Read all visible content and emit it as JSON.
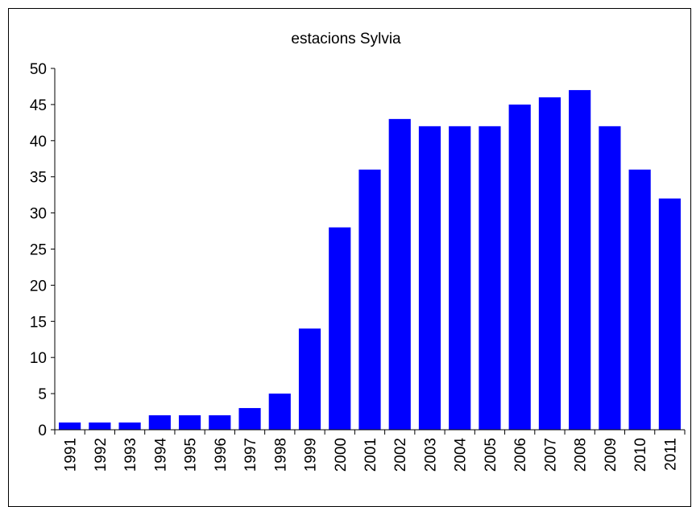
{
  "chart_data": {
    "type": "bar",
    "title": "estacions Sylvia",
    "xlabel": "",
    "ylabel": "",
    "categories": [
      "1991",
      "1992",
      "1993",
      "1994",
      "1995",
      "1996",
      "1997",
      "1998",
      "1999",
      "2000",
      "2001",
      "2002",
      "2003",
      "2004",
      "2005",
      "2006",
      "2007",
      "2008",
      "2009",
      "2010",
      "2011"
    ],
    "values": [
      1,
      1,
      1,
      2,
      2,
      2,
      3,
      5,
      14,
      28,
      36,
      43,
      42,
      42,
      42,
      45,
      46,
      47,
      42,
      36,
      32
    ],
    "ylim": [
      0,
      50
    ],
    "yticks": [
      0,
      5,
      10,
      15,
      20,
      25,
      30,
      35,
      40,
      45,
      50
    ],
    "grid": false,
    "legend": "none",
    "bar_color": "#0000FF"
  }
}
